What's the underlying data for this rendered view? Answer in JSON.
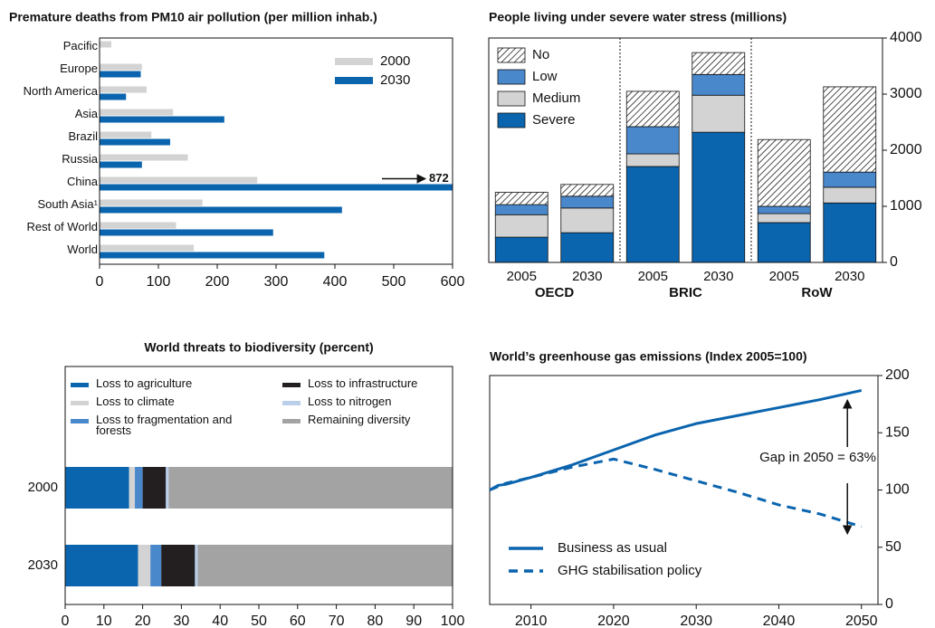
{
  "chart_data": [
    {
      "type": "hbar",
      "title": "Premature deaths from PM10 air pollution (per million inhab.)",
      "categories": [
        "Pacific",
        "Europe",
        "North America",
        "Asia",
        "Brazil",
        "Russia",
        "China",
        "South Asia¹",
        "Rest of World",
        "World"
      ],
      "series": [
        {
          "name": "2000",
          "color": "#d3d3d3",
          "values": [
            20,
            72,
            80,
            125,
            88,
            150,
            268,
            175,
            130,
            160
          ]
        },
        {
          "name": "2030",
          "color": "#0a64ae",
          "values": [
            null,
            70,
            45,
            212,
            120,
            72,
            872,
            412,
            295,
            382
          ],
          "value_labels": [
            null,
            null,
            null,
            null,
            null,
            null,
            "872",
            null,
            null,
            null
          ]
        }
      ],
      "xlim": [
        0,
        600
      ],
      "xticks": [
        0,
        100,
        200,
        300,
        400,
        500,
        600
      ],
      "legend": "top-right"
    },
    {
      "type": "stacked_bar",
      "title": "People living under severe water stress (millions)",
      "categories": [
        "2005",
        "2030",
        "2005",
        "2030",
        "2005",
        "2030"
      ],
      "groups": [
        "OECD",
        "BRIC",
        "RoW"
      ],
      "series": [
        {
          "name": "Severe",
          "color": "#0a64ae",
          "values": [
            450,
            530,
            1710,
            2320,
            710,
            1060
          ]
        },
        {
          "name": "Medium",
          "color": "#d3d3d3",
          "values": [
            400,
            440,
            225,
            660,
            160,
            280
          ]
        },
        {
          "name": "Low",
          "color": "#4a88cc",
          "values": [
            180,
            210,
            485,
            370,
            130,
            270
          ]
        },
        {
          "name": "No",
          "color": "#ffffff",
          "hatch": true,
          "values": [
            220,
            210,
            630,
            390,
            1190,
            1520
          ]
        }
      ],
      "ylim": [
        0,
        4000
      ],
      "yticks": [
        0,
        1000,
        2000,
        3000,
        4000
      ],
      "axis_side": "right",
      "legend": "top-left"
    },
    {
      "type": "stacked_hbar",
      "title": "World threats to biodiversity (percent)",
      "categories": [
        "2000",
        "2030"
      ],
      "series": [
        {
          "name": "Loss to agriculture",
          "color": "#0a64ae",
          "values": [
            16.5,
            18.8
          ]
        },
        {
          "name": "Loss to climate",
          "color": "#d3d3d3",
          "values": [
            1.5,
            3.2
          ]
        },
        {
          "name": "Loss to fragmentation and forests",
          "color": "#4a88cc",
          "values": [
            2.0,
            2.8
          ]
        },
        {
          "name": "Loss to infrastructure",
          "color": "#231f20",
          "values": [
            6.0,
            8.7
          ]
        },
        {
          "name": "Loss to nitrogen",
          "color": "#b9cfea",
          "values": [
            0.7,
            0.7
          ]
        },
        {
          "name": "Remaining diversity",
          "color": "#a3a3a3",
          "values": [
            73.3,
            65.8
          ]
        }
      ],
      "xlim": [
        0,
        100
      ],
      "xticks": [
        0,
        10,
        20,
        30,
        40,
        50,
        60,
        70,
        80,
        90,
        100
      ],
      "legend": "top"
    },
    {
      "type": "line",
      "title": "World’s greenhouse gas emissions (Index 2005=100)",
      "x": [
        2005,
        2006,
        2007,
        2010,
        2015,
        2020,
        2025,
        2030,
        2035,
        2040,
        2045,
        2050
      ],
      "series": [
        {
          "name": "Business as usual",
          "color": "#0a64ae",
          "dash": false,
          "values": [
            100,
            104,
            105,
            111,
            122,
            135,
            148,
            158,
            165,
            172,
            179,
            187
          ]
        },
        {
          "name": "GHG stabilisation policy",
          "color": "#0a64ae",
          "dash": true,
          "values": [
            100,
            103,
            106,
            111,
            120,
            127,
            118,
            108,
            98,
            87,
            79,
            68
          ]
        }
      ],
      "annotation": "Gap in 2050 = 63%",
      "xlim": [
        2005,
        2052
      ],
      "xticks": [
        2010,
        2020,
        2030,
        2040,
        2050
      ],
      "ylim": [
        0,
        200
      ],
      "yticks": [
        0,
        50,
        100,
        150,
        200
      ],
      "axis_side": "right",
      "legend": "bottom-left"
    }
  ]
}
